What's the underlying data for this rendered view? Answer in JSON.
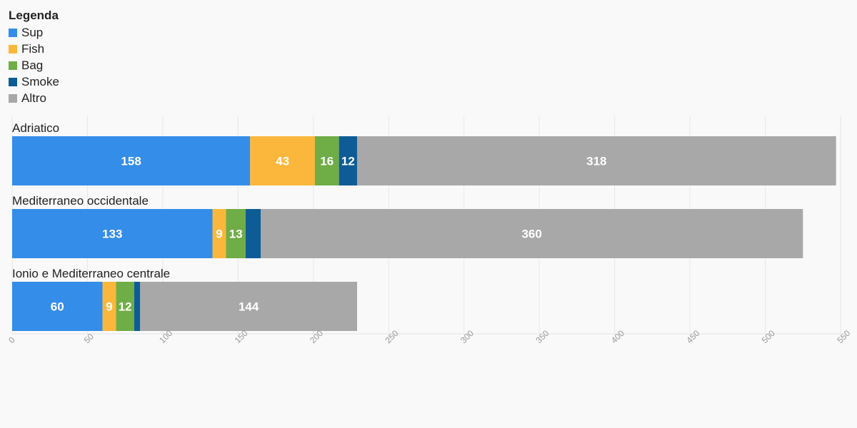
{
  "legend": {
    "title": "Legenda"
  },
  "colors": {
    "Sup": "#348de8",
    "Fish": "#fbb73b",
    "Bag": "#6fad47",
    "Smoke": "#0e5c96",
    "Altro": "#a8a8a8"
  },
  "chart_data": {
    "type": "bar",
    "orientation": "horizontal",
    "stacked": true,
    "categories": [
      "Adriatico",
      "Mediterraneo occidentale",
      "Ionio e Mediterraneo centrale"
    ],
    "series": [
      {
        "name": "Sup",
        "values": [
          158,
          133,
          60
        ],
        "labels": [
          "158",
          "133",
          "60"
        ]
      },
      {
        "name": "Fish",
        "values": [
          43,
          9,
          9
        ],
        "labels": [
          "43",
          "9",
          "9"
        ]
      },
      {
        "name": "Bag",
        "values": [
          16,
          13,
          12
        ],
        "labels": [
          "16",
          "13",
          "12"
        ]
      },
      {
        "name": "Smoke",
        "values": [
          12,
          10,
          4
        ],
        "labels": [
          "12",
          "",
          ""
        ]
      },
      {
        "name": "Altro",
        "values": [
          318,
          360,
          144
        ],
        "labels": [
          "318",
          "360",
          "144"
        ]
      }
    ],
    "xlim": [
      0,
      550
    ],
    "xticks": [
      0,
      50,
      100,
      150,
      200,
      250,
      300,
      350,
      400,
      450,
      500,
      550
    ],
    "grid": true,
    "legend_position": "top-left",
    "title": "",
    "xlabel": "",
    "ylabel": ""
  }
}
